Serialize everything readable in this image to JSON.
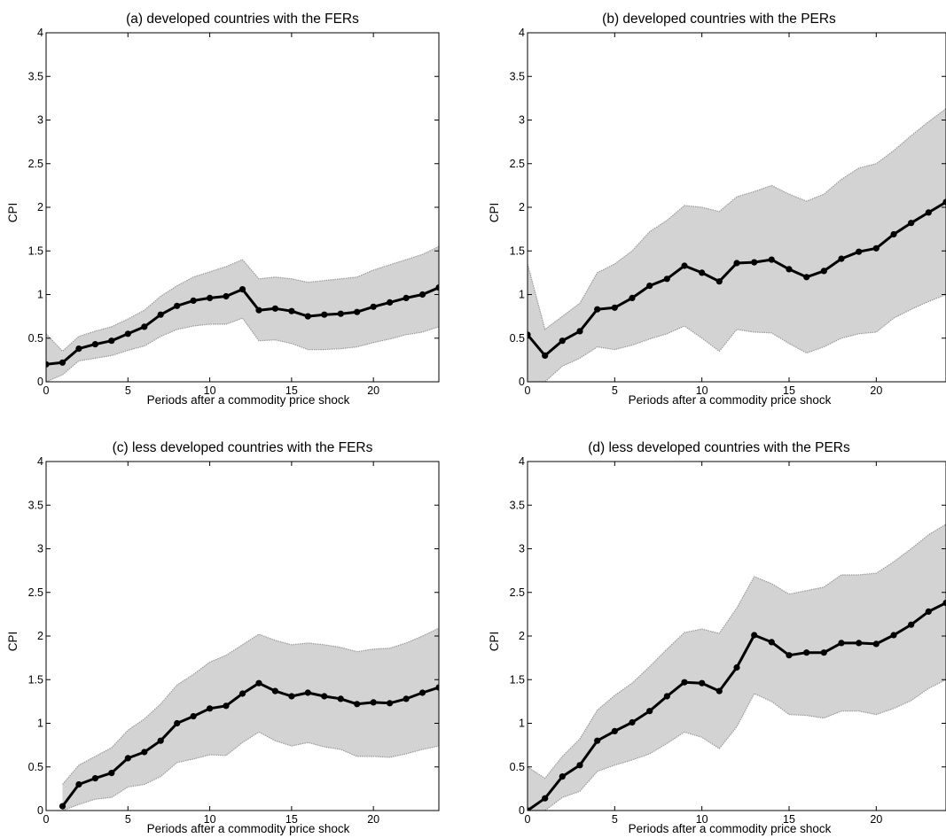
{
  "chart_data": [
    {
      "type": "line",
      "title": "(a) developed countries with the FERs",
      "xlabel": "Periods after a commodity price shock",
      "ylabel": "CPI",
      "xlim": [
        0,
        24
      ],
      "ylim": [
        0,
        4
      ],
      "xticks": [
        "0",
        "5",
        "10",
        "15",
        "20"
      ],
      "yticks": [
        "0",
        "0.5",
        "1",
        "1.5",
        "2",
        "2.5",
        "3",
        "3.5",
        "4"
      ],
      "grid": false,
      "band_color": "#d3d3d3",
      "line_color": "#000000",
      "x": [
        0,
        1,
        2,
        3,
        4,
        5,
        6,
        7,
        8,
        9,
        10,
        11,
        12,
        13,
        14,
        15,
        16,
        17,
        18,
        19,
        20,
        21,
        22,
        23,
        24
      ],
      "series": [
        {
          "role": "estimate",
          "values": [
            0.2,
            0.22,
            0.38,
            0.43,
            0.47,
            0.55,
            0.63,
            0.77,
            0.87,
            0.93,
            0.96,
            0.98,
            1.06,
            0.82,
            0.84,
            0.81,
            0.75,
            0.77,
            0.78,
            0.8,
            0.86,
            0.91,
            0.96,
            1.0,
            1.08
          ]
        },
        {
          "role": "upper",
          "values": [
            0.55,
            0.35,
            0.52,
            0.58,
            0.63,
            0.72,
            0.82,
            0.98,
            1.1,
            1.2,
            1.26,
            1.32,
            1.4,
            1.18,
            1.2,
            1.18,
            1.14,
            1.16,
            1.18,
            1.2,
            1.28,
            1.34,
            1.4,
            1.46,
            1.55
          ]
        },
        {
          "role": "lower",
          "values": [
            0.0,
            0.08,
            0.24,
            0.27,
            0.3,
            0.36,
            0.41,
            0.52,
            0.6,
            0.64,
            0.66,
            0.66,
            0.73,
            0.47,
            0.48,
            0.44,
            0.37,
            0.37,
            0.38,
            0.4,
            0.45,
            0.49,
            0.54,
            0.57,
            0.63
          ]
        }
      ]
    },
    {
      "type": "line",
      "title": "(b) developed countries with the PERs",
      "xlabel": "Periods after a commodity price shock",
      "ylabel": "CPI",
      "xlim": [
        0,
        24
      ],
      "ylim": [
        0,
        4
      ],
      "xticks": [
        "0",
        "5",
        "10",
        "15",
        "20"
      ],
      "yticks": [
        "0",
        "0.5",
        "1",
        "1.5",
        "2",
        "2.5",
        "3",
        "3.5",
        "4"
      ],
      "grid": false,
      "band_color": "#d3d3d3",
      "line_color": "#000000",
      "x": [
        0,
        1,
        2,
        3,
        4,
        5,
        6,
        7,
        8,
        9,
        10,
        11,
        12,
        13,
        14,
        15,
        16,
        17,
        18,
        19,
        20,
        21,
        22,
        23,
        24
      ],
      "series": [
        {
          "role": "estimate",
          "values": [
            0.54,
            0.3,
            0.47,
            0.58,
            0.83,
            0.85,
            0.96,
            1.1,
            1.18,
            1.33,
            1.25,
            1.15,
            1.36,
            1.37,
            1.4,
            1.29,
            1.2,
            1.27,
            1.41,
            1.49,
            1.53,
            1.69,
            1.82,
            1.94,
            2.06
          ]
        },
        {
          "role": "upper",
          "values": [
            1.35,
            0.6,
            0.75,
            0.9,
            1.25,
            1.35,
            1.5,
            1.72,
            1.85,
            2.02,
            2.0,
            1.95,
            2.12,
            2.18,
            2.25,
            2.15,
            2.07,
            2.15,
            2.32,
            2.45,
            2.5,
            2.65,
            2.82,
            2.98,
            3.13
          ]
        },
        {
          "role": "lower",
          "values": [
            0.0,
            0.0,
            0.18,
            0.27,
            0.4,
            0.37,
            0.42,
            0.49,
            0.55,
            0.64,
            0.5,
            0.35,
            0.6,
            0.57,
            0.56,
            0.44,
            0.33,
            0.4,
            0.5,
            0.55,
            0.57,
            0.73,
            0.83,
            0.92,
            1.0
          ]
        }
      ]
    },
    {
      "type": "line",
      "title": "(c) less developed countries with the FERs",
      "xlabel": "Periods after a commodity price shock",
      "ylabel": "CPI",
      "xlim": [
        0,
        24
      ],
      "ylim": [
        0,
        4
      ],
      "xticks": [
        "0",
        "5",
        "10",
        "15",
        "20"
      ],
      "yticks": [
        "0",
        "0.5",
        "1",
        "1.5",
        "2",
        "2.5",
        "3",
        "3.5",
        "4"
      ],
      "grid": false,
      "band_color": "#d3d3d3",
      "line_color": "#000000",
      "x": [
        1,
        2,
        3,
        4,
        5,
        6,
        7,
        8,
        9,
        10,
        11,
        12,
        13,
        14,
        15,
        16,
        17,
        18,
        19,
        20,
        21,
        22,
        23,
        24
      ],
      "series": [
        {
          "role": "estimate",
          "values": [
            0.05,
            0.3,
            0.37,
            0.43,
            0.6,
            0.67,
            0.8,
            1.0,
            1.08,
            1.17,
            1.2,
            1.34,
            1.46,
            1.37,
            1.31,
            1.35,
            1.31,
            1.28,
            1.22,
            1.24,
            1.23,
            1.28,
            1.35,
            1.41
          ]
        },
        {
          "role": "upper",
          "values": [
            0.3,
            0.52,
            0.62,
            0.72,
            0.92,
            1.05,
            1.22,
            1.44,
            1.56,
            1.7,
            1.78,
            1.9,
            2.02,
            1.95,
            1.9,
            1.92,
            1.9,
            1.87,
            1.82,
            1.85,
            1.86,
            1.92,
            2.0,
            2.09
          ]
        },
        {
          "role": "lower",
          "values": [
            0.0,
            0.07,
            0.13,
            0.15,
            0.27,
            0.3,
            0.39,
            0.55,
            0.59,
            0.64,
            0.63,
            0.78,
            0.9,
            0.8,
            0.74,
            0.78,
            0.73,
            0.7,
            0.62,
            0.62,
            0.61,
            0.65,
            0.7,
            0.74
          ]
        }
      ]
    },
    {
      "type": "line",
      "title": "(d) less developed countries with the PERs",
      "xlabel": "Periods after a commodity price shock",
      "ylabel": "CPI",
      "xlim": [
        0,
        24
      ],
      "ylim": [
        0,
        4
      ],
      "xticks": [
        "0",
        "5",
        "10",
        "15",
        "20"
      ],
      "yticks": [
        "0",
        "0.5",
        "1",
        "1.5",
        "2",
        "2.5",
        "3",
        "3.5",
        "4"
      ],
      "grid": false,
      "band_color": "#d3d3d3",
      "line_color": "#000000",
      "x": [
        0,
        1,
        2,
        3,
        4,
        5,
        6,
        7,
        8,
        9,
        10,
        11,
        12,
        13,
        14,
        15,
        16,
        17,
        18,
        19,
        20,
        21,
        22,
        23,
        24
      ],
      "series": [
        {
          "role": "estimate",
          "values": [
            -0.05,
            0.14,
            0.39,
            0.52,
            0.8,
            0.91,
            1.01,
            1.14,
            1.31,
            1.47,
            1.46,
            1.37,
            1.64,
            2.01,
            1.93,
            1.78,
            1.81,
            1.81,
            1.92,
            1.92,
            1.91,
            2.01,
            2.13,
            2.28,
            2.38
          ]
        },
        {
          "role": "upper",
          "values": [
            0.5,
            0.37,
            0.62,
            0.82,
            1.15,
            1.32,
            1.46,
            1.65,
            1.85,
            2.04,
            2.08,
            2.03,
            2.32,
            2.68,
            2.6,
            2.48,
            2.52,
            2.56,
            2.7,
            2.7,
            2.72,
            2.85,
            3.0,
            3.16,
            3.28
          ]
        },
        {
          "role": "lower",
          "values": [
            -0.3,
            -0.08,
            0.15,
            0.22,
            0.45,
            0.52,
            0.58,
            0.65,
            0.77,
            0.9,
            0.84,
            0.71,
            0.96,
            1.34,
            1.25,
            1.1,
            1.09,
            1.06,
            1.14,
            1.14,
            1.1,
            1.17,
            1.26,
            1.4,
            1.5
          ]
        }
      ]
    }
  ]
}
